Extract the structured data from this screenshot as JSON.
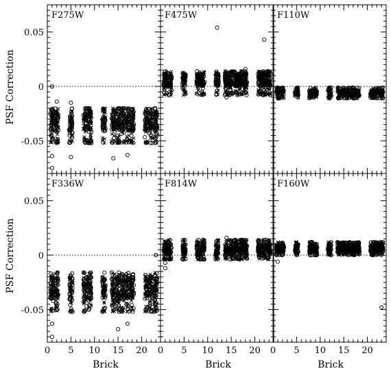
{
  "chart_data": {
    "type": "scatter",
    "layout": "2x3 grid, shared axes",
    "xlabel": "Brick",
    "ylabel": "PSF Correction",
    "xlim": [
      0,
      24
    ],
    "ylim": [
      -0.08,
      0.075
    ],
    "xticks": [
      0,
      5,
      10,
      15,
      20
    ],
    "yticks": [
      0.05,
      0,
      -0.05
    ],
    "ytick_labels": [
      "0.05",
      "0",
      "-0.05"
    ],
    "reference_line": {
      "y": 0,
      "style": "dotted"
    },
    "markers": [
      "open-circle",
      "cross"
    ],
    "panels": [
      {
        "name": "F275W",
        "bricks": [
          1,
          2,
          5,
          8,
          9,
          12,
          14,
          15,
          16,
          17,
          18,
          21,
          22,
          23
        ],
        "center": -0.032,
        "spread_low": -0.052,
        "spread_high": -0.02,
        "outliers": [
          [
            1,
            -0.075
          ],
          [
            1,
            0.0
          ],
          [
            1,
            -0.064
          ],
          [
            5,
            -0.065
          ],
          [
            14,
            -0.066
          ],
          [
            17,
            -0.063
          ],
          [
            2,
            -0.014
          ],
          [
            5,
            -0.015
          ]
        ]
      },
      {
        "name": "F475W",
        "bricks": [
          1,
          2,
          5,
          8,
          9,
          12,
          14,
          15,
          16,
          17,
          18,
          21,
          22,
          23
        ],
        "center": 0.006,
        "spread_low": -0.008,
        "spread_high": 0.014,
        "outliers": [
          [
            12,
            0.054
          ],
          [
            22,
            0.043
          ],
          [
            14,
            -0.01
          ],
          [
            18,
            0.016
          ]
        ]
      },
      {
        "name": "F110W",
        "bricks": [
          1,
          2,
          5,
          8,
          9,
          12,
          14,
          15,
          16,
          17,
          18,
          21,
          22,
          23
        ],
        "center": -0.006,
        "spread_low": -0.011,
        "spread_high": -0.001,
        "outliers": []
      },
      {
        "name": "F336W",
        "bricks": [
          1,
          2,
          5,
          8,
          9,
          12,
          14,
          15,
          16,
          17,
          18,
          21,
          22,
          23
        ],
        "center": -0.03,
        "spread_low": -0.052,
        "spread_high": -0.016,
        "outliers": [
          [
            1,
            -0.075
          ],
          [
            1,
            -0.063
          ],
          [
            15,
            -0.068
          ],
          [
            17,
            -0.063
          ],
          [
            23,
            -0.0
          ]
        ]
      },
      {
        "name": "F814W",
        "bricks": [
          1,
          2,
          5,
          8,
          9,
          12,
          14,
          15,
          16,
          17,
          18,
          21,
          22,
          23
        ],
        "center": 0.005,
        "spread_low": -0.004,
        "spread_high": 0.014,
        "outliers": [
          [
            1,
            -0.012
          ],
          [
            14,
            0.016
          ],
          [
            1,
            -0.007
          ],
          [
            18,
            0.013
          ],
          [
            22,
            0.014
          ]
        ]
      },
      {
        "name": "F160W",
        "bricks": [
          1,
          2,
          5,
          8,
          9,
          12,
          14,
          15,
          16,
          17,
          18,
          21,
          22,
          23
        ],
        "center": 0.006,
        "spread_low": 0.0,
        "spread_high": 0.012,
        "outliers": [
          [
            1,
            -0.006
          ],
          [
            23,
            -0.048
          ]
        ]
      }
    ]
  }
}
